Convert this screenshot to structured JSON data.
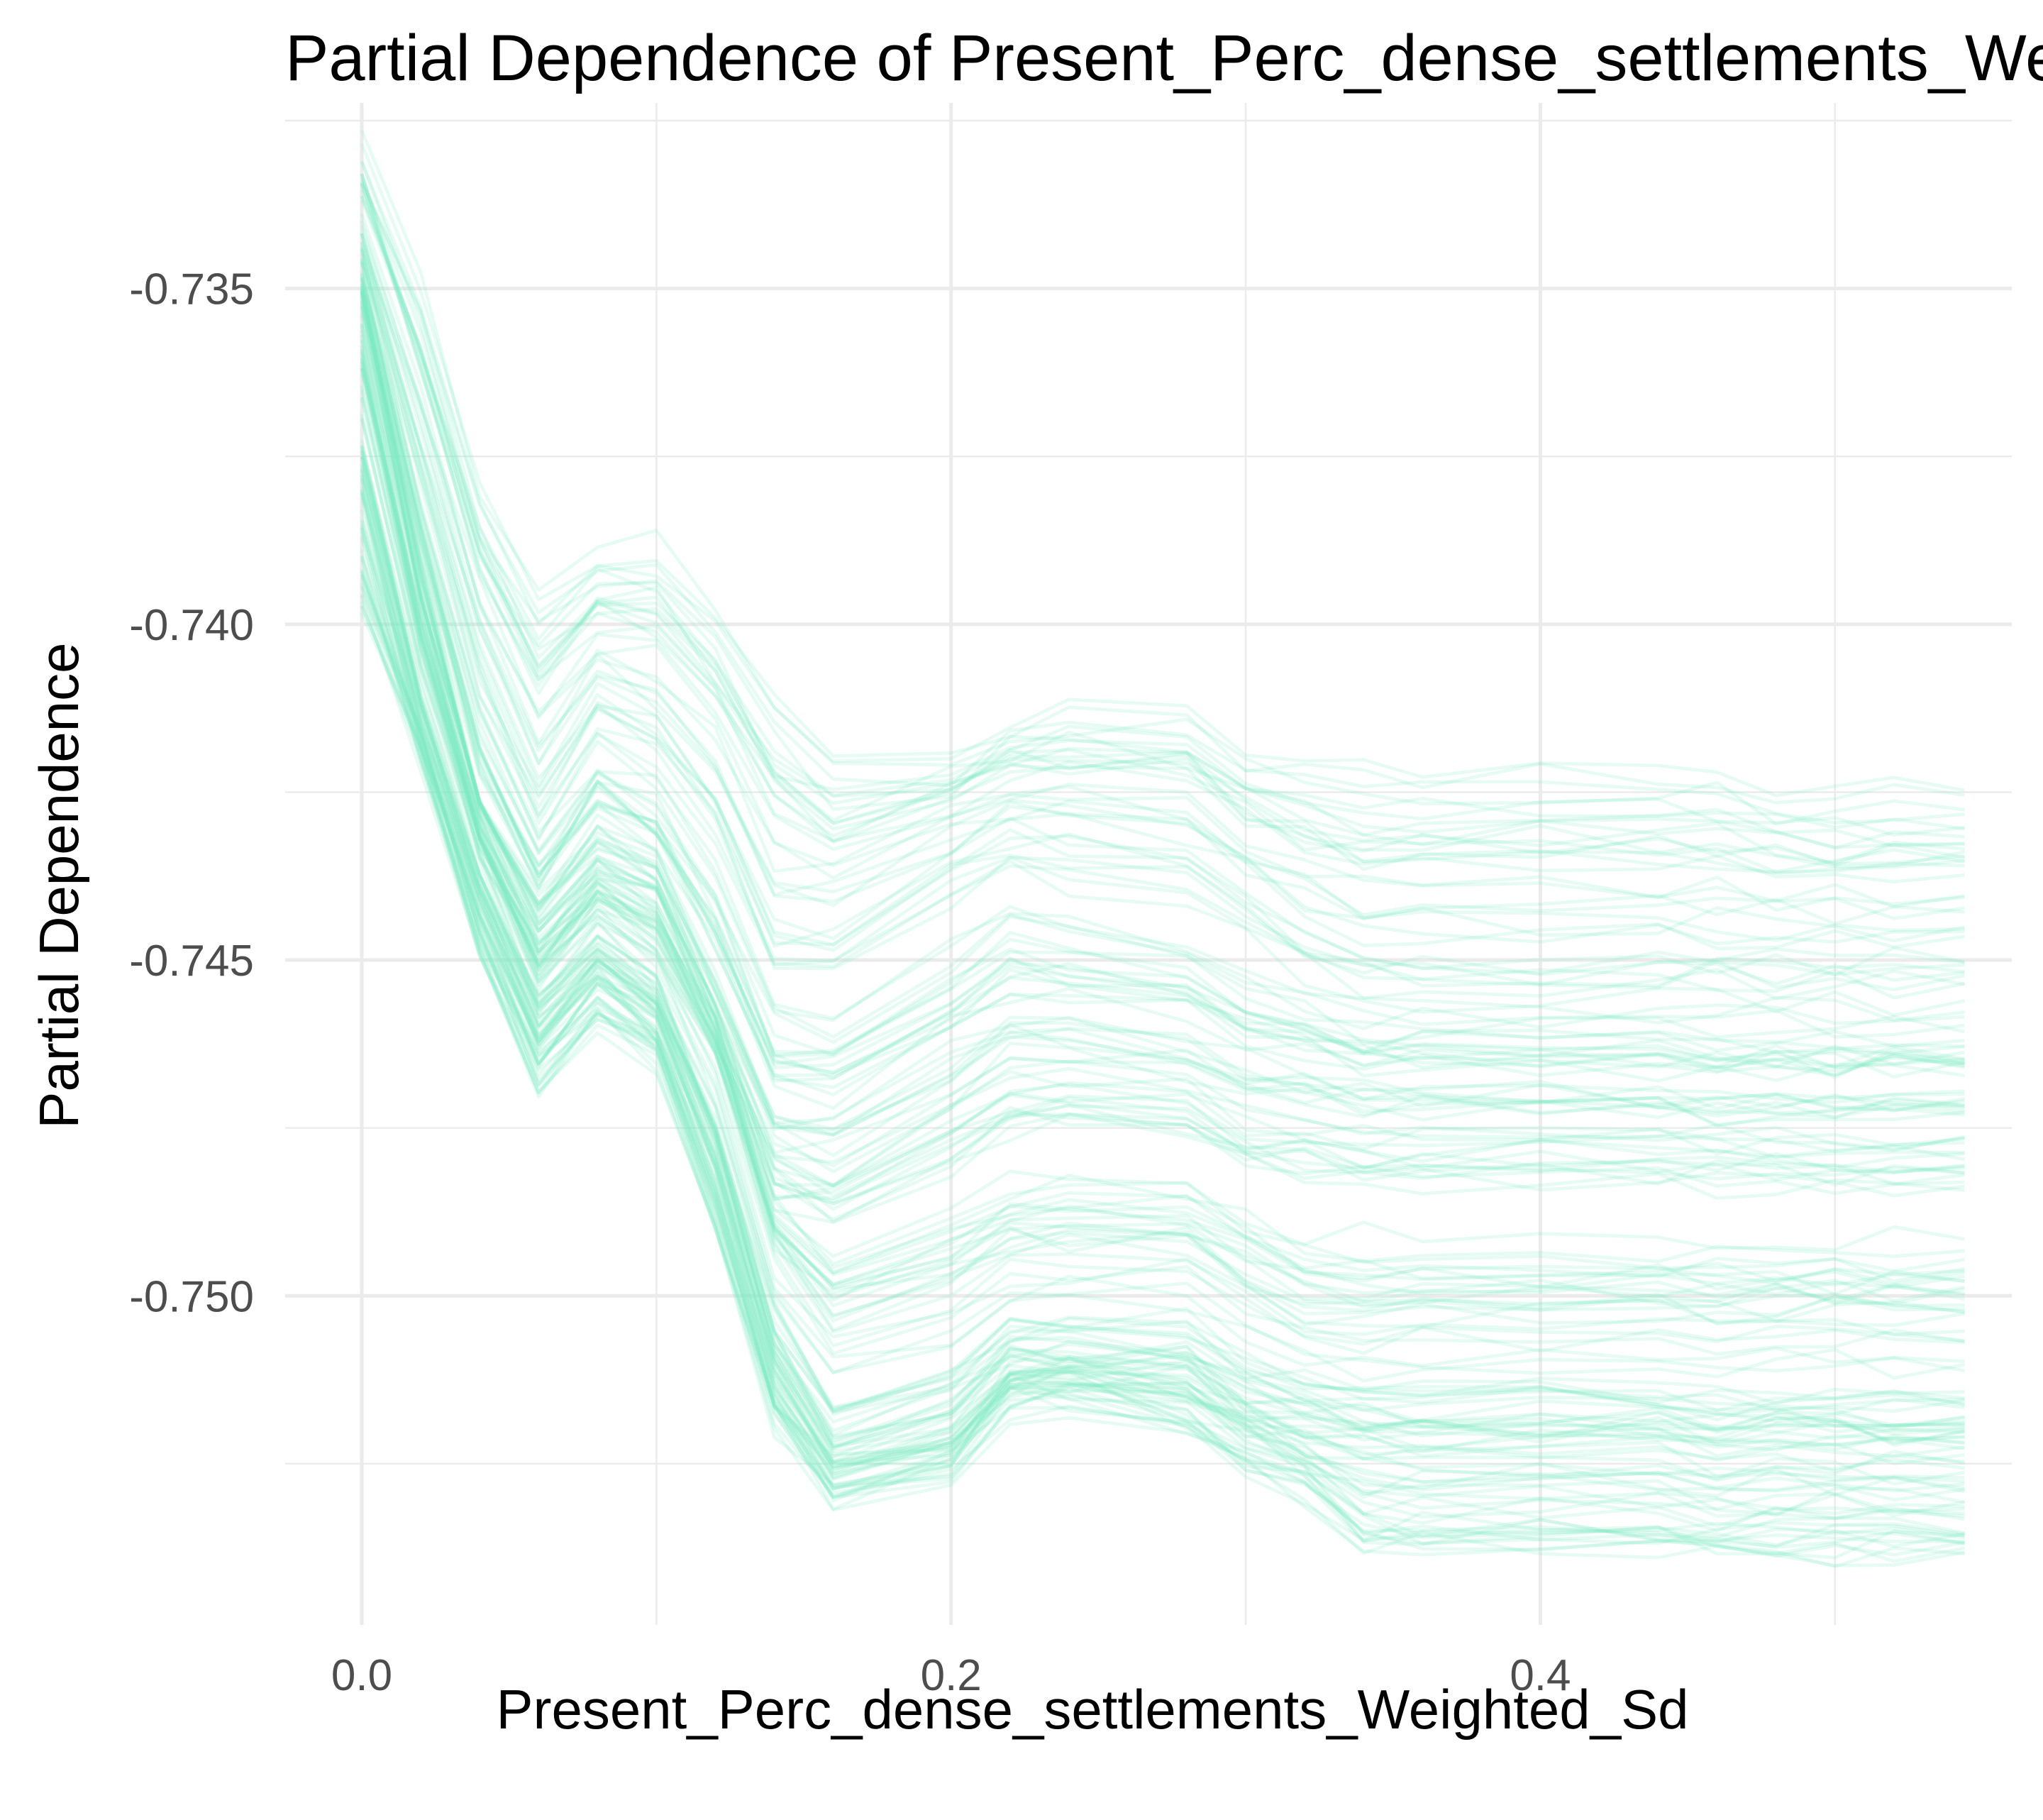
{
  "chart_data": {
    "type": "line",
    "title": "Partial Dependence of Present_Perc_dense_settlements_Weighted_Sd",
    "xlabel": "Present_Perc_dense_settlements_Weighted_Sd",
    "ylabel": "Partial Dependence",
    "xlim": [
      -0.026,
      0.56
    ],
    "ylim": [
      -0.7549,
      -0.7325
    ],
    "x_ticks": [
      0.0,
      0.2,
      0.4
    ],
    "x_tick_labels": [
      "0.0",
      "0.2",
      "0.4"
    ],
    "y_ticks": [
      -0.735,
      -0.74,
      -0.745,
      -0.75
    ],
    "y_tick_labels": [
      "-0.735",
      "-0.740",
      "-0.745",
      "-0.750"
    ],
    "x_minor_gridlines": [
      0.1,
      0.3,
      0.5
    ],
    "y_minor_gridlines": [
      -0.7325,
      -0.7375,
      -0.7425,
      -0.7475,
      -0.7525
    ],
    "grid": true,
    "legend": "none",
    "line_color": "#7FEBC3",
    "line_opacity": 0.2,
    "n_lines": 160,
    "x": [
      0.0,
      0.02,
      0.04,
      0.06,
      0.08,
      0.1,
      0.12,
      0.14,
      0.16,
      0.2,
      0.22,
      0.24,
      0.28,
      0.3,
      0.32,
      0.34,
      0.36,
      0.4,
      0.44,
      0.46,
      0.48,
      0.5,
      0.52,
      0.544
    ],
    "representative_series": [
      {
        "values": [
          -0.733,
          -0.735,
          -0.738,
          -0.7395,
          -0.739,
          -0.7388,
          -0.7398,
          -0.741,
          -0.742,
          -0.742,
          -0.7415,
          -0.7413,
          -0.7413,
          -0.742,
          -0.742,
          -0.7422,
          -0.7422,
          -0.7422,
          -0.7422,
          -0.7422,
          -0.7425,
          -0.7425,
          -0.7425,
          -0.7425
        ]
      },
      {
        "values": [
          -0.7345,
          -0.7375,
          -0.7405,
          -0.7425,
          -0.741,
          -0.7415,
          -0.7425,
          -0.7445,
          -0.7445,
          -0.7435,
          -0.743,
          -0.7432,
          -0.7435,
          -0.744,
          -0.7447,
          -0.745,
          -0.745,
          -0.745,
          -0.745,
          -0.745,
          -0.745,
          -0.745,
          -0.745,
          -0.745
        ]
      },
      {
        "values": [
          -0.735,
          -0.7395,
          -0.743,
          -0.7445,
          -0.7435,
          -0.744,
          -0.746,
          -0.748,
          -0.7482,
          -0.7472,
          -0.7466,
          -0.7466,
          -0.7468,
          -0.7472,
          -0.7472,
          -0.7474,
          -0.7474,
          -0.7474,
          -0.7474,
          -0.7475,
          -0.7475,
          -0.7475,
          -0.7475,
          -0.7475
        ]
      },
      {
        "values": [
          -0.736,
          -0.74,
          -0.743,
          -0.745,
          -0.744,
          -0.7445,
          -0.746,
          -0.749,
          -0.75,
          -0.7495,
          -0.749,
          -0.749,
          -0.749,
          -0.7495,
          -0.75,
          -0.75,
          -0.75,
          -0.75,
          -0.75,
          -0.75,
          -0.75,
          -0.75,
          -0.75,
          -0.75
        ]
      },
      {
        "values": [
          -0.738,
          -0.7415,
          -0.744,
          -0.746,
          -0.745,
          -0.7458,
          -0.748,
          -0.751,
          -0.7525,
          -0.752,
          -0.7512,
          -0.7512,
          -0.7512,
          -0.7518,
          -0.752,
          -0.7522,
          -0.7522,
          -0.7522,
          -0.7522,
          -0.7523,
          -0.7523,
          -0.7523,
          -0.7523,
          -0.7523
        ]
      },
      {
        "values": [
          -0.74,
          -0.742,
          -0.745,
          -0.747,
          -0.746,
          -0.7465,
          -0.749,
          -0.752,
          -0.753,
          -0.7527,
          -0.7515,
          -0.7514,
          -0.752,
          -0.7525,
          -0.753,
          -0.754,
          -0.754,
          -0.754,
          -0.754,
          -0.7541,
          -0.7541,
          -0.7541,
          -0.7541,
          -0.7541
        ]
      }
    ]
  }
}
